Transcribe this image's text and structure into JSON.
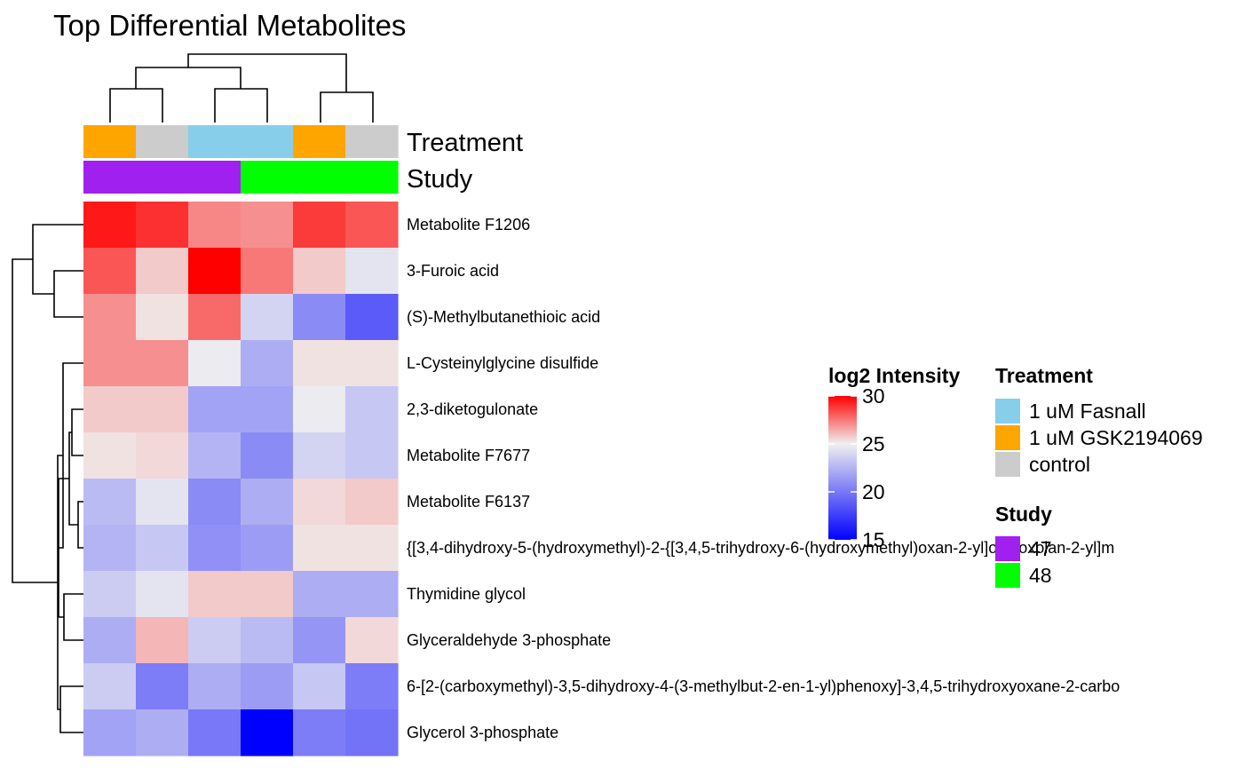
{
  "chart_data": {
    "type": "heatmap",
    "title": "Top Differential Metabolites",
    "rows": [
      "Metabolite F1206",
      "3-Furoic acid",
      "(S)-Methylbutanethioic acid",
      "L-Cysteinylglycine disulfide",
      "2,3-diketogulonate",
      "Metabolite F7677",
      "Metabolite F6137",
      "{[3,4-dihydroxy-5-(hydroxymethyl)-2-{[3,4,5-trihydroxy-6-(hydroxymethyl)oxan-2-yl]oxy}oxolan-2-yl]m",
      "Thymidine glycol",
      "Glyceraldehyde 3-phosphate",
      "6-[2-(carboxymethyl)-3,5-dihydroxy-4-(3-methylbut-2-en-1-yl)phenoxy]-3,4,5-trihydroxyoxane-2-carbo",
      "Glycerol 3-phosphate"
    ],
    "column_treatment": [
      "1 uM GSK2194069",
      "control",
      "1 uM Fasnall",
      "1 uM Fasnall",
      "1 uM GSK2194069",
      "control"
    ],
    "column_study": [
      "47",
      "47",
      "47",
      "48",
      "48",
      "48"
    ],
    "values": [
      [
        29.5,
        29.0,
        27.2,
        27.0,
        28.8,
        28.2
      ],
      [
        28.2,
        25.8,
        30.0,
        27.5,
        25.8,
        24.5
      ],
      [
        27.0,
        25.3,
        27.8,
        23.8,
        20.8,
        18.8
      ],
      [
        27.0,
        27.0,
        24.8,
        22.2,
        25.3,
        25.3
      ],
      [
        25.8,
        25.8,
        21.8,
        21.8,
        24.8,
        23.3
      ],
      [
        25.3,
        25.5,
        22.5,
        20.8,
        23.8,
        23.3
      ],
      [
        22.8,
        24.5,
        20.8,
        22.2,
        25.5,
        25.8
      ],
      [
        22.5,
        23.3,
        21.0,
        21.5,
        25.3,
        25.3
      ],
      [
        23.5,
        24.5,
        25.8,
        25.8,
        22.2,
        22.2
      ],
      [
        22.2,
        26.2,
        23.5,
        22.8,
        21.2,
        25.5
      ],
      [
        23.5,
        20.2,
        22.2,
        21.5,
        23.3,
        20.2
      ],
      [
        21.8,
        22.2,
        20.0,
        15.0,
        20.2,
        19.8
      ]
    ],
    "color_scale": {
      "title": "log2 Intensity",
      "min": 15,
      "mid": 25,
      "max": 30,
      "ticks": [
        30,
        25,
        20,
        15
      ],
      "low_color": "#0000ff",
      "mid_color": "#f0f0f0",
      "high_color": "#ff0000"
    },
    "annotations": {
      "treatment": {
        "title": "Treatment",
        "levels": [
          "1 uM Fasnall",
          "1 uM GSK2194069",
          "control"
        ],
        "colors": [
          "#87ceeb",
          "#ffa500",
          "#cccccc"
        ]
      },
      "study": {
        "title": "Study",
        "levels": [
          "47",
          "48"
        ],
        "colors": [
          "#a020f0",
          "#00ff00"
        ]
      }
    }
  }
}
